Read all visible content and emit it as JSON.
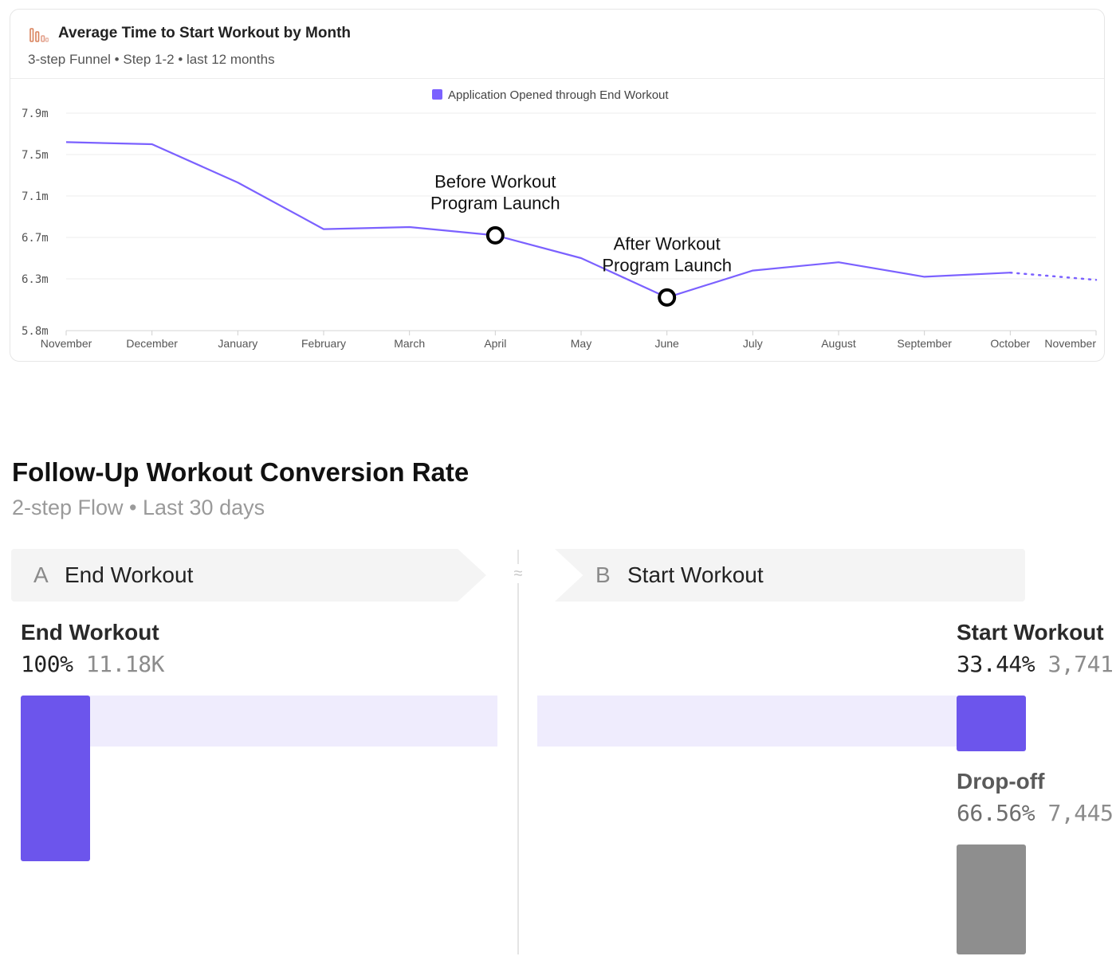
{
  "chart_card": {
    "title": "Average Time to Start Workout by Month",
    "subtitle": "3-step Funnel • Step 1-2 • last 12 months",
    "icon": "bar-chart-icon"
  },
  "chart_data": {
    "type": "line",
    "legend": {
      "placement": "top-center"
    },
    "grid": true,
    "categories": [
      "November",
      "December",
      "January",
      "February",
      "March",
      "April",
      "May",
      "June",
      "July",
      "August",
      "September",
      "October",
      "November"
    ],
    "y_ticks": [
      "5.8m",
      "6.3m",
      "6.7m",
      "7.1m",
      "7.5m",
      "7.9m"
    ],
    "y_tick_values": [
      5.8,
      6.3,
      6.7,
      7.1,
      7.5,
      7.9
    ],
    "ylim": [
      5.8,
      7.9
    ],
    "series": [
      {
        "name": "Application Opened through End Workout",
        "color": "#7b61ff",
        "values": [
          7.62,
          7.6,
          7.23,
          6.78,
          6.8,
          6.72,
          6.5,
          6.12,
          6.38,
          6.46,
          6.32,
          6.36,
          6.29
        ],
        "dashed_last_segment": true
      }
    ],
    "annotations": [
      {
        "category_index": 5,
        "text_lines": [
          "Before Workout",
          "Program Launch"
        ]
      },
      {
        "category_index": 7,
        "text_lines": [
          "After Workout",
          "Program Launch"
        ]
      }
    ]
  },
  "funnel": {
    "title": "Follow-Up Workout Conversion Rate",
    "subtitle": "2-step Flow • Last 30 days",
    "divider_symbol": "≈",
    "steps": [
      {
        "letter": "A",
        "name": "End Workout"
      },
      {
        "letter": "B",
        "name": "Start Workout"
      }
    ],
    "step_a": {
      "label": "End Workout",
      "percent": "100%",
      "count": "11.18K",
      "fraction": 1.0
    },
    "step_b": {
      "label": "Start Workout",
      "percent": "33.44%",
      "count": "3,741",
      "fraction": 0.3344
    },
    "dropoff": {
      "label": "Drop-off",
      "percent": "66.56%",
      "count": "7,445",
      "fraction": 0.6656
    },
    "colors": {
      "primary": "#6c55ec",
      "track": "#efecfd",
      "dropoff": "#8e8e8e"
    }
  }
}
